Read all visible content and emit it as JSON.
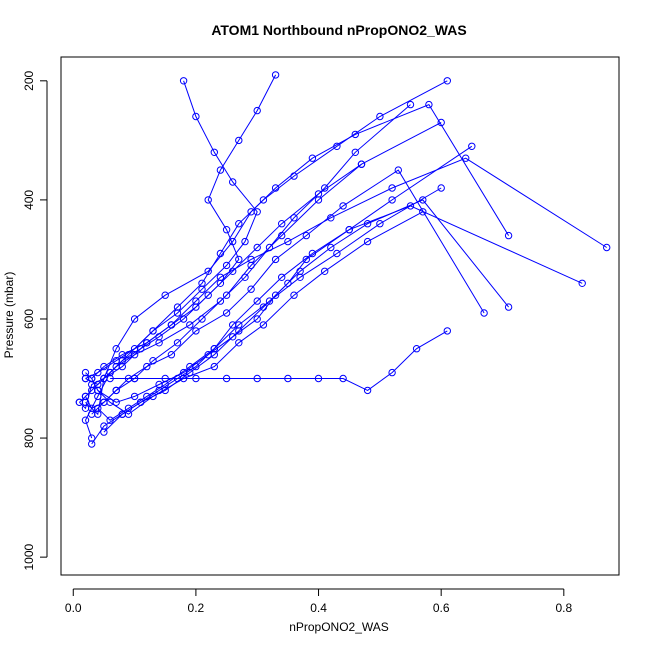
{
  "chart_data": {
    "type": "scatter",
    "title": "ATOM1 Northbound nPropONO2_WAS",
    "xlabel": "nPropONO2_WAS",
    "ylabel": "Pressure (mbar)",
    "xlim": [
      -0.02,
      0.89
    ],
    "ylim": [
      1030,
      160
    ],
    "y_axis_reversed": true,
    "xticks": [
      0.0,
      0.2,
      0.4,
      0.6,
      0.8
    ],
    "xtick_labels": [
      "0.0",
      "0.2",
      "0.4",
      "0.6",
      "0.8"
    ],
    "yticks": [
      200,
      400,
      600,
      800,
      1000
    ],
    "ytick_labels": [
      "200",
      "400",
      "600",
      "800",
      "1000"
    ],
    "grid": false,
    "color": "#0000ff",
    "marker": "open-circle",
    "series": [
      {
        "values_x": [
          0.02,
          0.04,
          0.05,
          0.07,
          0.1,
          0.15,
          0.22,
          0.26,
          0.29,
          0.33,
          0.39,
          0.46,
          0.58,
          0.71
        ],
        "values_y": [
          740,
          760,
          700,
          650,
          600,
          560,
          520,
          470,
          420,
          380,
          330,
          290,
          240,
          460
        ]
      },
      {
        "values_x": [
          0.03,
          0.02,
          0.04,
          0.06,
          0.09,
          0.13,
          0.17,
          0.21,
          0.24,
          0.27,
          0.31,
          0.36,
          0.43,
          0.5,
          0.61
        ],
        "values_y": [
          800,
          770,
          730,
          690,
          660,
          620,
          580,
          540,
          490,
          440,
          400,
          360,
          310,
          260,
          200
        ]
      },
      {
        "values_x": [
          0.01,
          0.02,
          0.03,
          0.05,
          0.08,
          0.12,
          0.16,
          0.2,
          0.24,
          0.29,
          0.35,
          0.42,
          0.52,
          0.64,
          0.87
        ],
        "values_y": [
          740,
          750,
          710,
          700,
          680,
          640,
          610,
          570,
          530,
          500,
          470,
          430,
          380,
          330,
          480
        ]
      },
      {
        "values_x": [
          0.03,
          0.05,
          0.08,
          0.11,
          0.15,
          0.19,
          0.23,
          0.27,
          0.31,
          0.35,
          0.38,
          0.45,
          0.55,
          0.83
        ],
        "values_y": [
          810,
          780,
          760,
          740,
          720,
          690,
          660,
          620,
          580,
          540,
          500,
          450,
          410,
          540
        ]
      },
      {
        "values_x": [
          0.02,
          0.03,
          0.04,
          0.06,
          0.09,
          0.13,
          0.18,
          0.23,
          0.27,
          0.31,
          0.36,
          0.41,
          0.48,
          0.57
        ],
        "values_y": [
          690,
          700,
          720,
          740,
          760,
          730,
          700,
          680,
          640,
          610,
          560,
          520,
          470,
          420
        ]
      },
      {
        "values_x": [
          0.03,
          0.05,
          0.07,
          0.09,
          0.12,
          0.16,
          0.2,
          0.25,
          0.29,
          0.33,
          0.38,
          0.44,
          0.53,
          0.67
        ],
        "values_y": [
          760,
          740,
          720,
          700,
          680,
          660,
          620,
          590,
          550,
          500,
          460,
          410,
          350,
          590
        ]
      },
      {
        "values_x": [
          0.02,
          0.04,
          0.06,
          0.08,
          0.11,
          0.14,
          0.18,
          0.22,
          0.26,
          0.3,
          0.34,
          0.4,
          0.47,
          0.6
        ],
        "values_y": [
          700,
          710,
          690,
          670,
          650,
          630,
          600,
          560,
          520,
          480,
          440,
          390,
          340,
          270
        ]
      },
      {
        "values_x": [
          0.04,
          0.06,
          0.09,
          0.12,
          0.15,
          0.19,
          0.23,
          0.27,
          0.32,
          0.37,
          0.43,
          0.5,
          0.6
        ],
        "values_y": [
          750,
          770,
          750,
          730,
          710,
          680,
          650,
          610,
          570,
          530,
          490,
          440,
          380
        ]
      },
      {
        "values_x": [
          0.02,
          0.03,
          0.05,
          0.07,
          0.1,
          0.14,
          0.19,
          0.24,
          0.28,
          0.32,
          0.36,
          0.41,
          0.46,
          0.55
        ],
        "values_y": [
          730,
          720,
          700,
          680,
          660,
          640,
          610,
          570,
          530,
          480,
          430,
          380,
          320,
          240
        ]
      },
      {
        "values_x": [
          0.05,
          0.08,
          0.11,
          0.14,
          0.17,
          0.2,
          0.23,
          0.26,
          0.3,
          0.34,
          0.39,
          0.45,
          0.52,
          0.65
        ],
        "values_y": [
          790,
          760,
          740,
          720,
          700,
          680,
          650,
          610,
          570,
          530,
          490,
          450,
          400,
          310
        ]
      },
      {
        "values_x": [
          0.02,
          0.04,
          0.07,
          0.1,
          0.13,
          0.17,
          0.21,
          0.25,
          0.28,
          0.3,
          0.26,
          0.23,
          0.2,
          0.18
        ],
        "values_y": [
          700,
          690,
          670,
          650,
          620,
          590,
          550,
          510,
          470,
          420,
          370,
          320,
          260,
          200
        ]
      },
      {
        "values_x": [
          0.03,
          0.05,
          0.08,
          0.12,
          0.16,
          0.2,
          0.24,
          0.27,
          0.25,
          0.22,
          0.24,
          0.27,
          0.3,
          0.33
        ],
        "values_y": [
          700,
          680,
          660,
          640,
          610,
          580,
          540,
          500,
          450,
          400,
          350,
          300,
          250,
          190
        ]
      },
      {
        "values_x": [
          0.04,
          0.07,
          0.1,
          0.14,
          0.18,
          0.22,
          0.26,
          0.3,
          0.33,
          0.37,
          0.42,
          0.48,
          0.57,
          0.71
        ],
        "values_y": [
          720,
          740,
          730,
          710,
          690,
          660,
          630,
          600,
          560,
          520,
          480,
          440,
          400,
          580
        ]
      },
      {
        "values_x": [
          0.01,
          0.02,
          0.03,
          0.05,
          0.07,
          0.1,
          0.13,
          0.17,
          0.21,
          0.25,
          0.29,
          0.34,
          0.4,
          0.47
        ],
        "values_y": [
          740,
          730,
          750,
          740,
          720,
          700,
          670,
          640,
          600,
          560,
          510,
          460,
          400,
          340
        ]
      },
      {
        "values_x": [
          0.06,
          0.1,
          0.15,
          0.2,
          0.25,
          0.3,
          0.35,
          0.4,
          0.44,
          0.48,
          0.52,
          0.56,
          0.61
        ],
        "values_y": [
          700,
          700,
          700,
          700,
          700,
          700,
          700,
          700,
          700,
          720,
          690,
          650,
          620
        ]
      }
    ]
  }
}
